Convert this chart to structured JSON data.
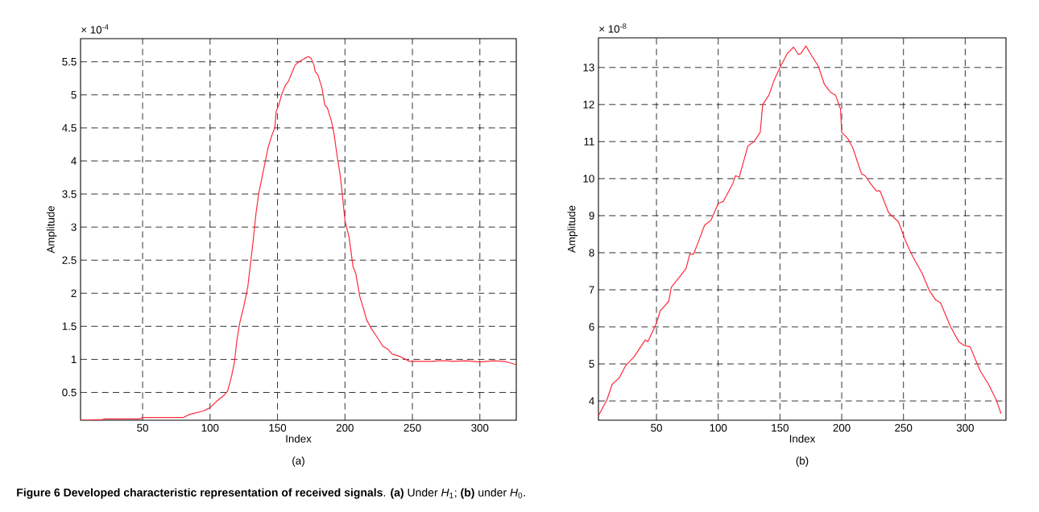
{
  "chart_data": [
    {
      "type": "line",
      "xlabel": "Index",
      "ylabel": "Amplitude",
      "annotations": [
        "× 10$^{-4}$",
        "(a)",
        "**Figure 6 Developed characteristic representation of received signals**. **(a)** Under *H*$_{1}$; **(b)** under *H*$_{0}$."
      ],
      "x": [
        4,
        20,
        22,
        48,
        50,
        80,
        85,
        95,
        100,
        105,
        110,
        113,
        116,
        118,
        120,
        122,
        125,
        128,
        130,
        132,
        134,
        136,
        138,
        141,
        143,
        146,
        148,
        149,
        151,
        153,
        156,
        158,
        161,
        163,
        166,
        170,
        173,
        175,
        177,
        178,
        180,
        183,
        185,
        187,
        190,
        192,
        194,
        196,
        197,
        199,
        200,
        203,
        206,
        208,
        211,
        214,
        216,
        220,
        225,
        228,
        232,
        235,
        240,
        245,
        248,
        255,
        265,
        270,
        275,
        280,
        290,
        300,
        310,
        318,
        322,
        327
      ],
      "values": [
        0.08,
        0.09,
        0.1,
        0.1,
        0.12,
        0.12,
        0.17,
        0.22,
        0.27,
        0.37,
        0.45,
        0.52,
        0.75,
        0.95,
        1.3,
        1.55,
        1.8,
        2.1,
        2.45,
        2.8,
        3.2,
        3.5,
        3.7,
        4.0,
        4.2,
        4.4,
        4.5,
        4.75,
        4.85,
        5.0,
        5.15,
        5.2,
        5.35,
        5.45,
        5.5,
        5.55,
        5.58,
        5.55,
        5.45,
        5.35,
        5.3,
        5.1,
        4.85,
        4.8,
        4.6,
        4.4,
        4.1,
        3.85,
        3.7,
        3.3,
        3.1,
        2.85,
        2.4,
        2.3,
        1.95,
        1.75,
        1.6,
        1.45,
        1.3,
        1.2,
        1.15,
        1.08,
        1.05,
        1.0,
        0.97,
        0.97,
        0.97,
        0.98,
        0.98,
        0.97,
        0.98,
        0.96,
        0.98,
        0.97,
        0.95,
        0.92
      ],
      "color": "#ff2a3a",
      "xlim": [
        4,
        327
      ],
      "ylim": [
        0.08,
        5.85
      ],
      "xticks": [
        50,
        100,
        150,
        200,
        250,
        300
      ],
      "yticks": [
        0.5,
        1,
        1.5,
        2,
        2.5,
        3,
        3.5,
        4,
        4.5,
        5,
        5.5
      ],
      "grid": true,
      "line_style": "solid"
    },
    {
      "type": "line",
      "xlabel": "Index",
      "ylabel": "Amplitude",
      "annotations": [
        "× 10$^{-8}$",
        "(b)"
      ],
      "x": [
        3,
        10,
        14,
        20,
        25,
        32,
        41,
        43,
        50,
        53,
        60,
        62,
        69,
        74,
        77,
        80,
        84,
        89,
        94,
        100,
        104,
        112,
        114,
        117,
        124,
        129,
        134,
        136,
        141,
        145,
        150,
        156,
        161,
        165,
        167,
        171,
        176,
        181,
        186,
        191,
        195,
        199,
        200,
        205,
        209,
        216,
        219,
        223,
        228,
        231,
        238,
        246,
        252,
        256,
        260,
        265,
        271,
        276,
        280,
        288,
        295,
        299,
        304,
        312,
        319,
        325,
        329
      ],
      "values": [
        3.6,
        4.04,
        4.44,
        4.63,
        4.95,
        5.2,
        5.65,
        5.6,
        6.1,
        6.43,
        6.69,
        7.07,
        7.36,
        7.58,
        7.97,
        7.96,
        8.3,
        8.75,
        8.87,
        9.33,
        9.38,
        9.88,
        10.08,
        10.04,
        10.88,
        11.0,
        11.25,
        12.0,
        12.25,
        12.63,
        13.0,
        13.38,
        13.55,
        13.35,
        13.38,
        13.58,
        13.3,
        13.04,
        12.54,
        12.33,
        12.25,
        11.88,
        11.25,
        11.08,
        10.83,
        10.13,
        10.08,
        9.88,
        9.67,
        9.67,
        9.08,
        8.83,
        8.29,
        8.0,
        7.75,
        7.45,
        6.98,
        6.73,
        6.65,
        6.01,
        5.59,
        5.5,
        5.46,
        4.82,
        4.44,
        4.04,
        3.66
      ],
      "color": "#ff2a3a",
      "xlim": [
        3,
        333
      ],
      "ylim": [
        3.48,
        13.8
      ],
      "xticks": [
        50,
        100,
        150,
        200,
        250,
        300
      ],
      "yticks": [
        4,
        5,
        6,
        7,
        8,
        9,
        10,
        11,
        12,
        13
      ],
      "grid": true,
      "line_style": "solid"
    }
  ]
}
